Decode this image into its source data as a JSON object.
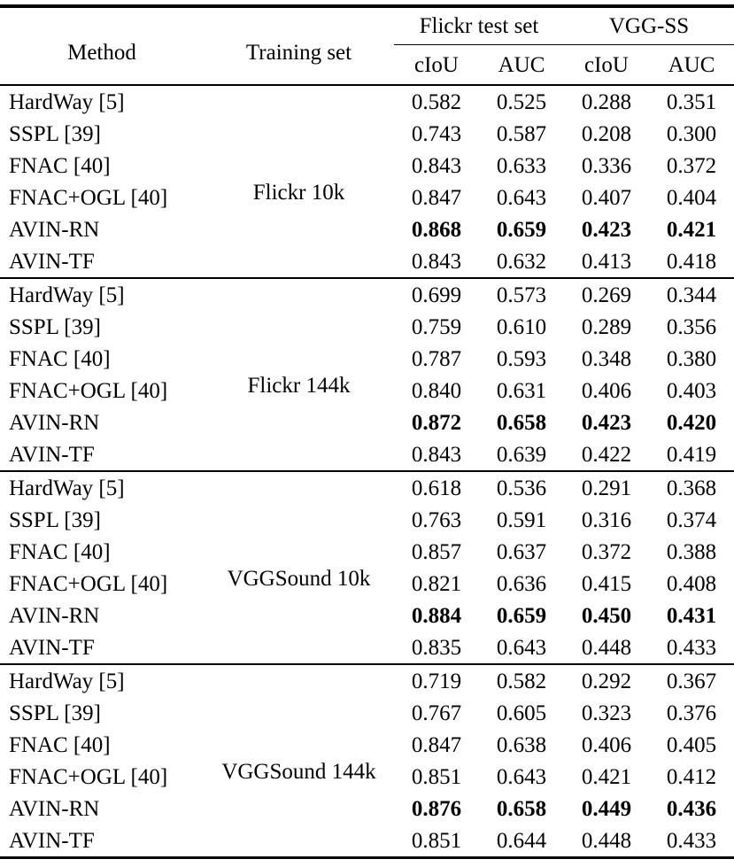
{
  "colors": {
    "background": "#ffffff",
    "text": "#000000",
    "rule": "#000000"
  },
  "table": {
    "header": {
      "method": "Method",
      "training_set": "Training set",
      "test_set_groups": [
        "Flickr test set",
        "VGG-SS"
      ],
      "sub_columns": [
        "cIoU",
        "AUC",
        "cIoU",
        "AUC"
      ]
    },
    "groups": [
      {
        "training_set": "Flickr 10k",
        "rows": [
          {
            "method": "HardWay [5]",
            "values": [
              "0.582",
              "0.525",
              "0.288",
              "0.351"
            ],
            "bold_values": false
          },
          {
            "method": "SSPL [39]",
            "values": [
              "0.743",
              "0.587",
              "0.208",
              "0.300"
            ],
            "bold_values": false
          },
          {
            "method": "FNAC [40]",
            "values": [
              "0.843",
              "0.633",
              "0.336",
              "0.372"
            ],
            "bold_values": false
          },
          {
            "method": "FNAC+OGL [40]",
            "values": [
              "0.847",
              "0.643",
              "0.407",
              "0.404"
            ],
            "bold_values": false
          },
          {
            "method": "AVIN-RN",
            "values": [
              "0.868",
              "0.659",
              "0.423",
              "0.421"
            ],
            "bold_values": true
          },
          {
            "method": "AVIN-TF",
            "values": [
              "0.843",
              "0.632",
              "0.413",
              "0.418"
            ],
            "bold_values": false
          }
        ]
      },
      {
        "training_set": "Flickr 144k",
        "rows": [
          {
            "method": "HardWay [5]",
            "values": [
              "0.699",
              "0.573",
              "0.269",
              "0.344"
            ],
            "bold_values": false
          },
          {
            "method": "SSPL [39]",
            "values": [
              "0.759",
              "0.610",
              "0.289",
              "0.356"
            ],
            "bold_values": false
          },
          {
            "method": "FNAC [40]",
            "values": [
              "0.787",
              "0.593",
              "0.348",
              "0.380"
            ],
            "bold_values": false
          },
          {
            "method": "FNAC+OGL [40]",
            "values": [
              "0.840",
              "0.631",
              "0.406",
              "0.403"
            ],
            "bold_values": false
          },
          {
            "method": "AVIN-RN",
            "values": [
              "0.872",
              "0.658",
              "0.423",
              "0.420"
            ],
            "bold_values": true
          },
          {
            "method": "AVIN-TF",
            "values": [
              "0.843",
              "0.639",
              "0.422",
              "0.419"
            ],
            "bold_values": false
          }
        ]
      },
      {
        "training_set": "VGGSound 10k",
        "rows": [
          {
            "method": "HardWay [5]",
            "values": [
              "0.618",
              "0.536",
              "0.291",
              "0.368"
            ],
            "bold_values": false
          },
          {
            "method": "SSPL [39]",
            "values": [
              "0.763",
              "0.591",
              "0.316",
              "0.374"
            ],
            "bold_values": false
          },
          {
            "method": "FNAC [40]",
            "values": [
              "0.857",
              "0.637",
              "0.372",
              "0.388"
            ],
            "bold_values": false
          },
          {
            "method": "FNAC+OGL [40]",
            "values": [
              "0.821",
              "0.636",
              "0.415",
              "0.408"
            ],
            "bold_values": false
          },
          {
            "method": "AVIN-RN",
            "values": [
              "0.884",
              "0.659",
              "0.450",
              "0.431"
            ],
            "bold_values": true
          },
          {
            "method": "AVIN-TF",
            "values": [
              "0.835",
              "0.643",
              "0.448",
              "0.433"
            ],
            "bold_values": false
          }
        ]
      },
      {
        "training_set": "VGGSound 144k",
        "rows": [
          {
            "method": "HardWay [5]",
            "values": [
              "0.719",
              "0.582",
              "0.292",
              "0.367"
            ],
            "bold_values": false
          },
          {
            "method": "SSPL [39]",
            "values": [
              "0.767",
              "0.605",
              "0.323",
              "0.376"
            ],
            "bold_values": false
          },
          {
            "method": "FNAC [40]",
            "values": [
              "0.847",
              "0.638",
              "0.406",
              "0.405"
            ],
            "bold_values": false
          },
          {
            "method": "FNAC+OGL [40]",
            "values": [
              "0.851",
              "0.643",
              "0.421",
              "0.412"
            ],
            "bold_values": false
          },
          {
            "method": "AVIN-RN",
            "values": [
              "0.876",
              "0.658",
              "0.449",
              "0.436"
            ],
            "bold_values": true
          },
          {
            "method": "AVIN-TF",
            "values": [
              "0.851",
              "0.644",
              "0.448",
              "0.433"
            ],
            "bold_values": false
          }
        ]
      }
    ]
  }
}
